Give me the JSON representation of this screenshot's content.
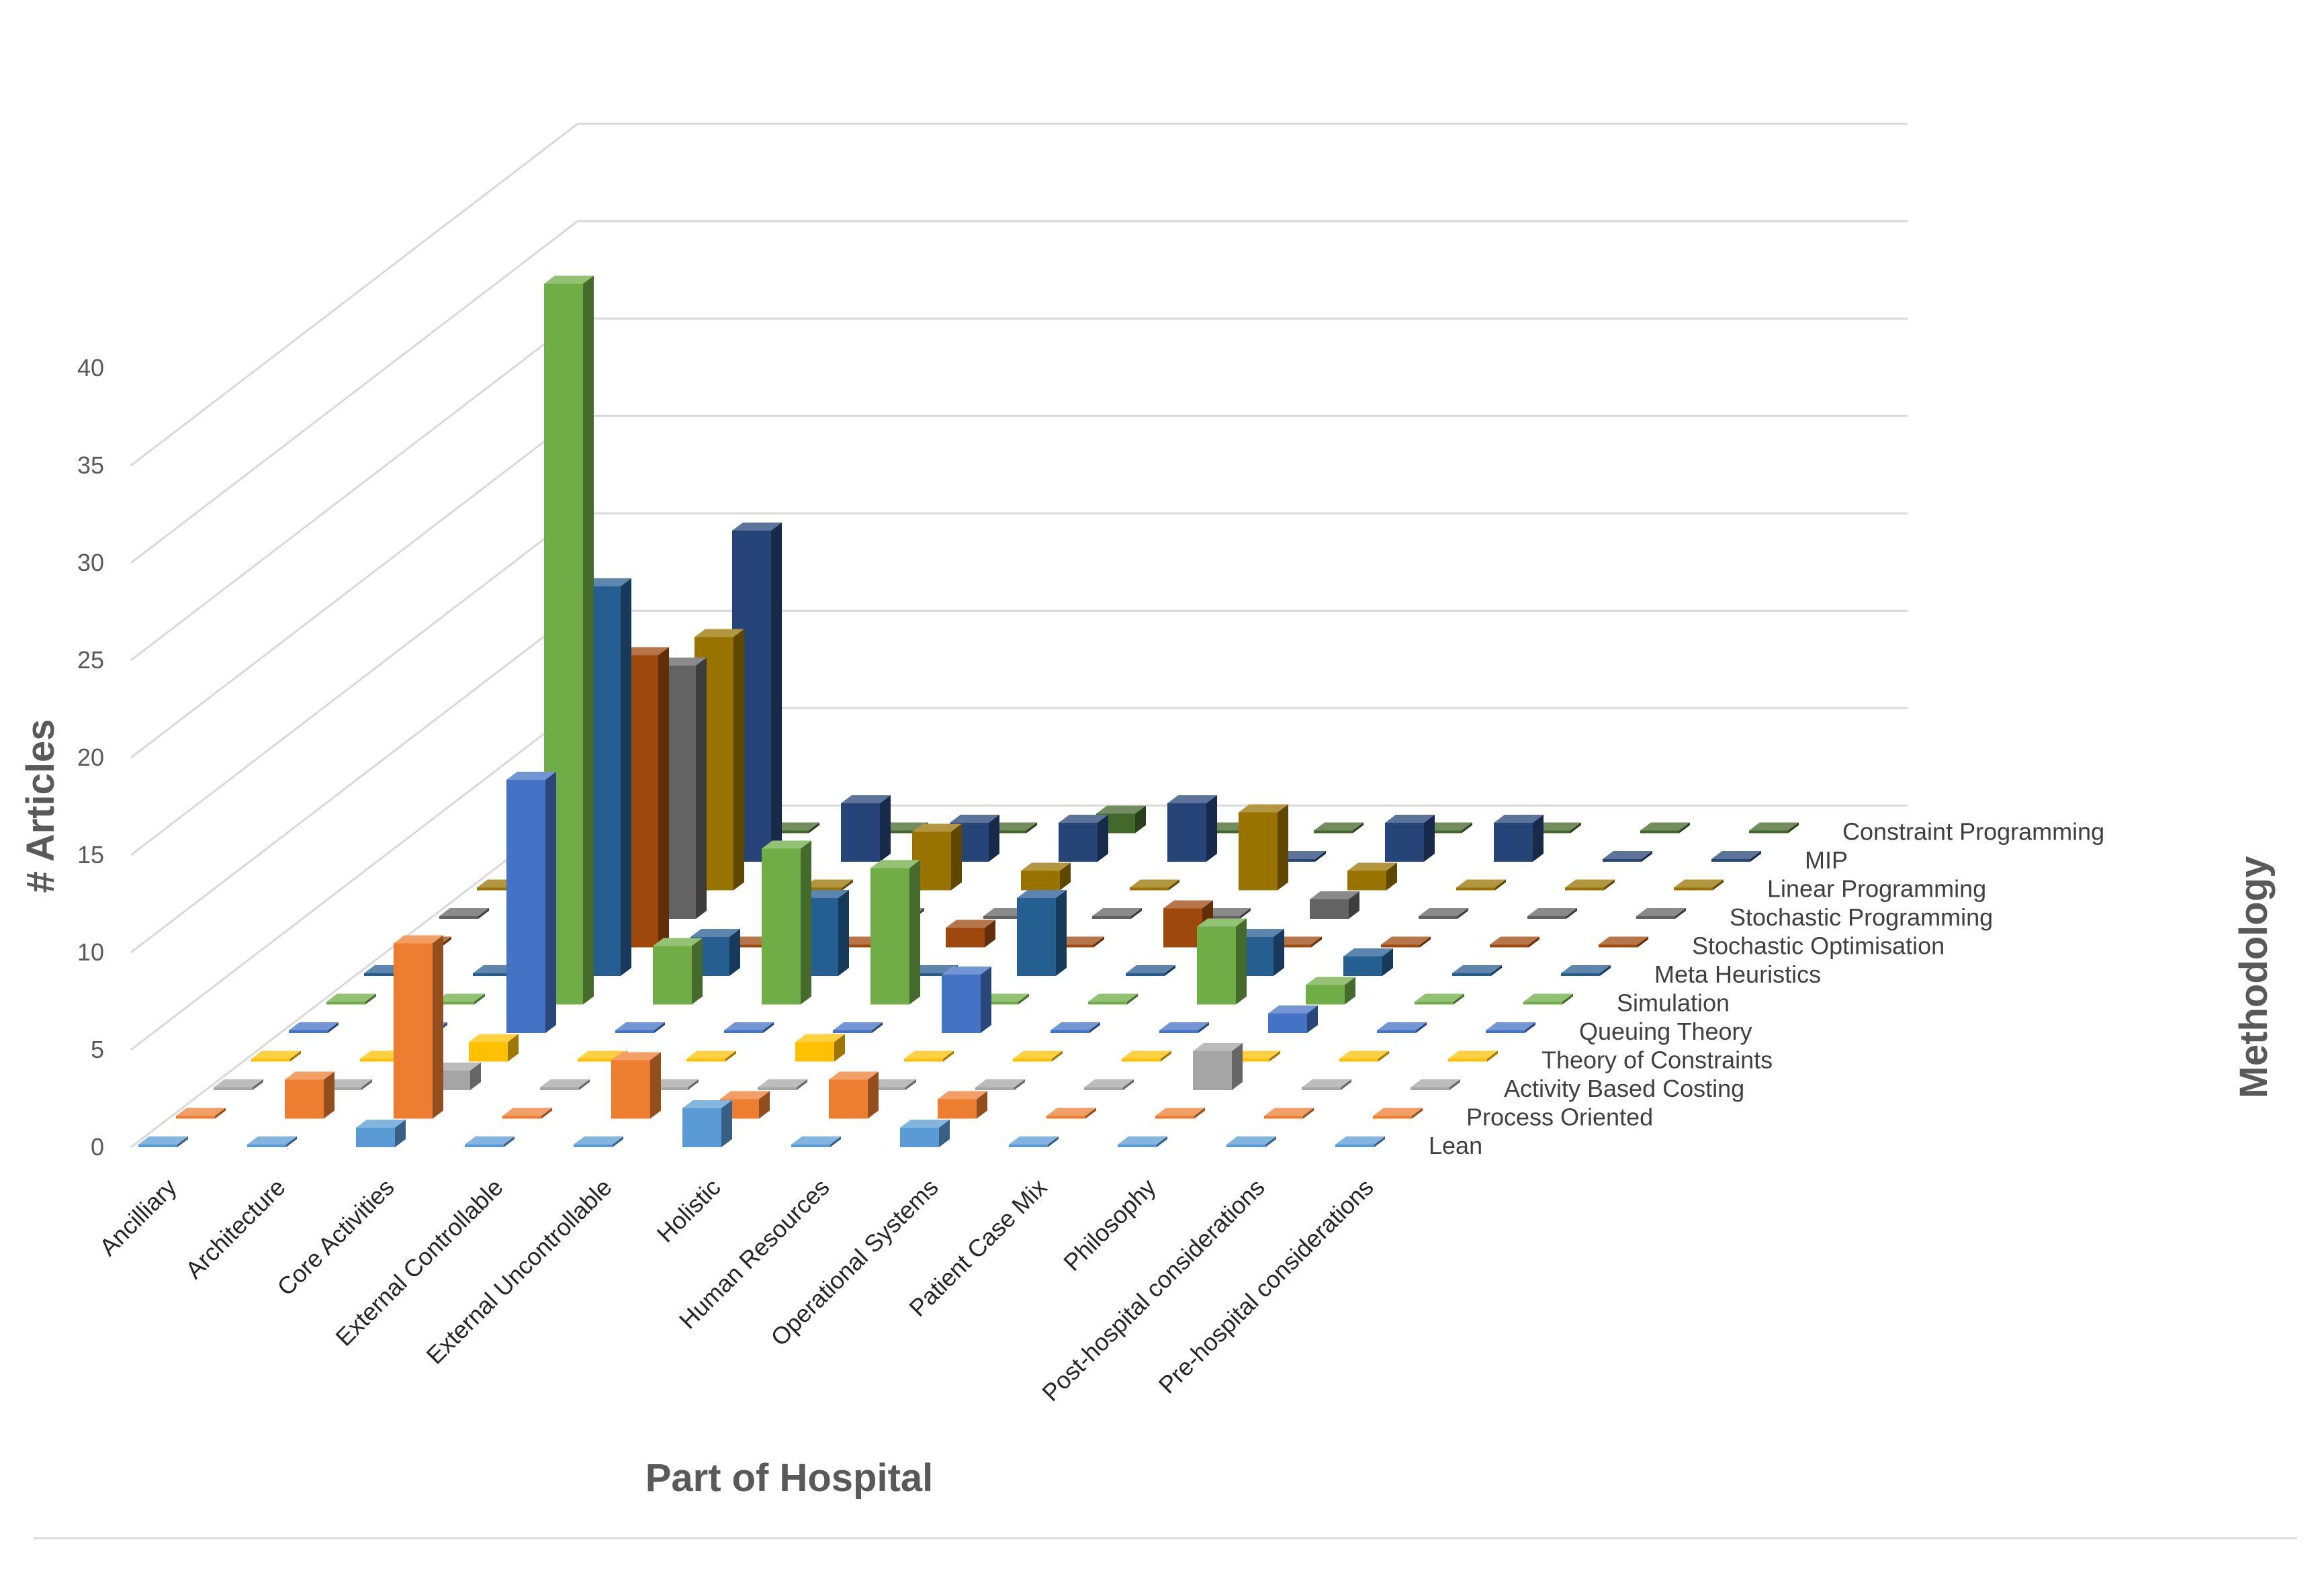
{
  "chart_data": {
    "type": "bar3d",
    "title": "",
    "xlabel": "Part of Hospital",
    "ylabel": "# Articles",
    "zlabel": "Methodology",
    "ylim": [
      0,
      40
    ],
    "yticks": [
      "0",
      "5",
      "10",
      "15",
      "20",
      "25",
      "30",
      "35",
      "40"
    ],
    "categories": [
      "Ancilliary",
      "Architecture",
      "Core Activities",
      "External Controllable",
      "External Uncontrollable",
      "Holistic",
      "Human Resources",
      "Operational Systems",
      "Patient Case Mix",
      "Philosophy",
      "Post-hospital considerations",
      "Pre-hospital considerations"
    ],
    "series": [
      {
        "name": "Lean",
        "color": "#5B9BD5",
        "values": [
          0,
          0,
          1,
          0,
          0,
          2,
          0,
          1,
          0,
          0,
          0,
          0
        ]
      },
      {
        "name": "Process Oriented",
        "color": "#ED7D31",
        "values": [
          0,
          2,
          9,
          0,
          3,
          1,
          2,
          1,
          0,
          0,
          0,
          0
        ]
      },
      {
        "name": "Activity Based Costing",
        "color": "#A5A5A5",
        "values": [
          0,
          0,
          1,
          0,
          0,
          0,
          0,
          0,
          0,
          2,
          0,
          0
        ]
      },
      {
        "name": "Theory of Constraints",
        "color": "#FFC000",
        "values": [
          0,
          0,
          1,
          0,
          0,
          1,
          0,
          0,
          0,
          0,
          0,
          0
        ]
      },
      {
        "name": "Queuing Theory",
        "color": "#4472C4",
        "values": [
          0,
          0,
          13,
          0,
          0,
          0,
          3,
          0,
          0,
          1,
          0,
          0
        ]
      },
      {
        "name": "Simulation",
        "color": "#70AD47",
        "values": [
          0,
          0,
          37,
          3,
          8,
          7,
          0,
          0,
          4,
          1,
          0,
          0
        ]
      },
      {
        "name": "Meta Heuristics",
        "color": "#255E91",
        "values": [
          0,
          0,
          20,
          2,
          4,
          0,
          4,
          0,
          2,
          1,
          0,
          0
        ]
      },
      {
        "name": "Stochastic Optimisation",
        "color": "#9E480E",
        "values": [
          0,
          0,
          15,
          0,
          0,
          1,
          0,
          2,
          0,
          0,
          0,
          0
        ]
      },
      {
        "name": "Stochastic Programming",
        "color": "#636363",
        "values": [
          0,
          0,
          13,
          0,
          0,
          0,
          0,
          0,
          1,
          0,
          0,
          0
        ]
      },
      {
        "name": "Linear Programming",
        "color": "#997300",
        "values": [
          0,
          0,
          13,
          0,
          3,
          1,
          0,
          4,
          1,
          0,
          0,
          0
        ]
      },
      {
        "name": "MIP",
        "color": "#264478",
        "values": [
          0,
          0,
          17,
          3,
          2,
          2,
          3,
          0,
          2,
          2,
          0,
          0
        ]
      },
      {
        "name": "Constraint Programming",
        "color": "#43682B",
        "values": [
          1,
          0,
          0,
          0,
          0,
          1,
          0,
          0,
          0,
          0,
          0,
          0
        ]
      }
    ]
  }
}
